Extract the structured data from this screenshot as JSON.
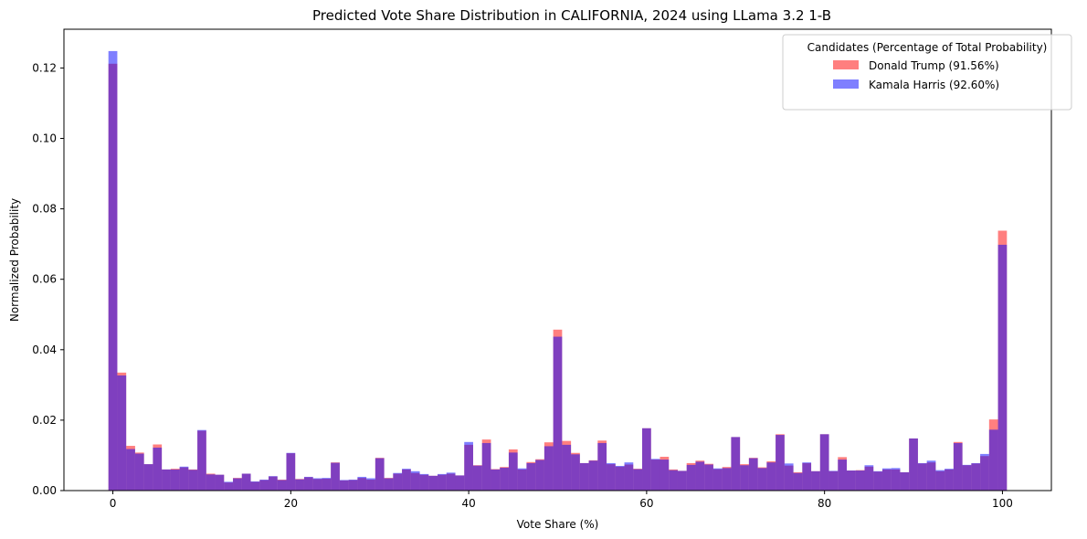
{
  "chart_data": {
    "type": "bar",
    "title": "Predicted Vote Share Distribution in CALIFORNIA, 2024 using LLama 3.2 1-B",
    "xlabel": "Vote Share (%)",
    "ylabel": "Normalized Probability",
    "xlim": [
      -5.5,
      105.5
    ],
    "ylim": [
      0,
      0.131
    ],
    "xticks": [
      0,
      20,
      40,
      60,
      80,
      100
    ],
    "xtick_labels": [
      "0",
      "20",
      "40",
      "60",
      "80",
      "100"
    ],
    "yticks": [
      0,
      0.02,
      0.04,
      0.06,
      0.08,
      0.1,
      0.12
    ],
    "ytick_labels": [
      "0.00",
      "0.02",
      "0.04",
      "0.06",
      "0.08",
      "0.10",
      "0.12"
    ],
    "grid": false,
    "legend": {
      "title": "Candidates (Percentage of Total Probability)",
      "position": "top-right"
    },
    "bins_start": -0.5,
    "bin_width": 1,
    "series": [
      {
        "name": "Donald Trump (91.56%)",
        "color": "#ff0000",
        "opacity": 0.5,
        "values": [
          0.1212,
          0.0335,
          0.0127,
          0.0108,
          0.0075,
          0.0131,
          0.006,
          0.0062,
          0.0066,
          0.006,
          0.017,
          0.0048,
          0.0045,
          0.0023,
          0.0036,
          0.0048,
          0.0025,
          0.003,
          0.004,
          0.0031,
          0.0106,
          0.0033,
          0.0038,
          0.0033,
          0.0034,
          0.008,
          0.0029,
          0.003,
          0.0036,
          0.0031,
          0.0093,
          0.0036,
          0.0048,
          0.006,
          0.005,
          0.0045,
          0.0042,
          0.0045,
          0.0048,
          0.0043,
          0.013,
          0.0072,
          0.0145,
          0.0061,
          0.0067,
          0.0117,
          0.006,
          0.0081,
          0.0089,
          0.0137,
          0.0457,
          0.0141,
          0.0107,
          0.0078,
          0.0086,
          0.0142,
          0.0075,
          0.0068,
          0.0074,
          0.0062,
          0.0177,
          0.0088,
          0.0096,
          0.006,
          0.0056,
          0.0078,
          0.0085,
          0.0076,
          0.0061,
          0.0067,
          0.0152,
          0.0075,
          0.0093,
          0.0066,
          0.0083,
          0.016,
          0.0071,
          0.0052,
          0.0078,
          0.0055,
          0.016,
          0.0055,
          0.0095,
          0.0057,
          0.0058,
          0.0068,
          0.0054,
          0.006,
          0.006,
          0.0052,
          0.0148,
          0.0077,
          0.008,
          0.0055,
          0.006,
          0.0138,
          0.0072,
          0.0077,
          0.0098,
          0.0202,
          0.0738
        ]
      },
      {
        "name": "Kamala Harris (92.60%)",
        "color": "#0000ff",
        "opacity": 0.5,
        "values": [
          0.1248,
          0.0327,
          0.0118,
          0.0105,
          0.0075,
          0.0122,
          0.006,
          0.006,
          0.0068,
          0.0059,
          0.0172,
          0.0046,
          0.0045,
          0.0025,
          0.0035,
          0.0048,
          0.0026,
          0.0031,
          0.0041,
          0.003,
          0.0107,
          0.0032,
          0.0039,
          0.0035,
          0.0036,
          0.0079,
          0.003,
          0.0031,
          0.0039,
          0.0035,
          0.0092,
          0.0035,
          0.005,
          0.0062,
          0.0055,
          0.0047,
          0.0042,
          0.0047,
          0.0051,
          0.0043,
          0.0138,
          0.0071,
          0.0135,
          0.006,
          0.0065,
          0.0108,
          0.0063,
          0.0078,
          0.0087,
          0.0126,
          0.0437,
          0.013,
          0.0103,
          0.0078,
          0.0085,
          0.0135,
          0.0078,
          0.007,
          0.008,
          0.0061,
          0.0177,
          0.009,
          0.0088,
          0.0058,
          0.0056,
          0.0073,
          0.0082,
          0.0074,
          0.0063,
          0.0064,
          0.0152,
          0.0072,
          0.0092,
          0.0064,
          0.008,
          0.0158,
          0.0077,
          0.005,
          0.008,
          0.0055,
          0.016,
          0.0056,
          0.0088,
          0.0057,
          0.0057,
          0.0072,
          0.0055,
          0.0063,
          0.0064,
          0.0052,
          0.0148,
          0.0078,
          0.0085,
          0.0058,
          0.0062,
          0.0135,
          0.0073,
          0.0078,
          0.0104,
          0.0173,
          0.0698
        ]
      }
    ]
  }
}
